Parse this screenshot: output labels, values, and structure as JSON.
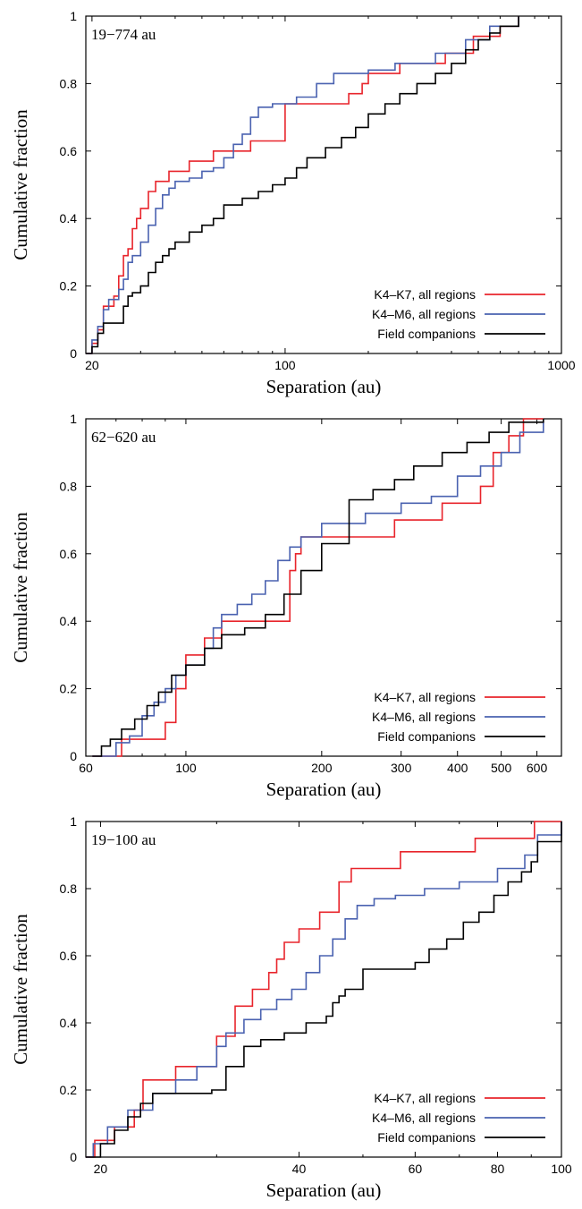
{
  "legend": [
    "K4–K7, all regions",
    "K4–M6, all regions",
    "Field companions"
  ],
  "colors": {
    "k4k7": "#e8242b",
    "k4m6": "#4a62b0",
    "field": "#000000"
  },
  "chart_data": [
    {
      "type": "line",
      "step": true,
      "xscale": "log",
      "xlim": [
        19,
        1000
      ],
      "ylim": [
        0,
        1
      ],
      "annotation": "19−774 au",
      "xlabel": "Separation (au)",
      "ylabel": "Cumulative fraction",
      "xticks": [
        20,
        100,
        1000
      ],
      "yticks": [
        0,
        0.2,
        0.4,
        0.6,
        0.8,
        1
      ],
      "legend_position": "bottom-right",
      "series": [
        {
          "name": "K4–K7, all regions",
          "color": "#e8242b",
          "x": [
            19,
            20,
            21,
            22,
            24,
            25,
            26,
            27,
            28,
            29,
            30,
            32,
            34,
            38,
            45,
            55,
            75,
            100,
            140,
            170,
            190,
            200,
            260,
            380,
            480,
            600,
            700
          ],
          "y": [
            0,
            0.03,
            0.07,
            0.14,
            0.17,
            0.23,
            0.29,
            0.31,
            0.37,
            0.4,
            0.43,
            0.48,
            0.51,
            0.54,
            0.57,
            0.6,
            0.63,
            0.74,
            0.74,
            0.77,
            0.8,
            0.83,
            0.86,
            0.89,
            0.94,
            0.97,
            1.0
          ]
        },
        {
          "name": "K4–M6, all regions",
          "color": "#4a62b0",
          "x": [
            19,
            20,
            21,
            22,
            23,
            25,
            26,
            27,
            28,
            30,
            32,
            34,
            36,
            38,
            40,
            45,
            50,
            55,
            60,
            65,
            70,
            75,
            80,
            90,
            100,
            110,
            130,
            150,
            200,
            250,
            350,
            450,
            550,
            700
          ],
          "y": [
            0,
            0.04,
            0.08,
            0.13,
            0.16,
            0.19,
            0.22,
            0.27,
            0.29,
            0.33,
            0.38,
            0.43,
            0.47,
            0.49,
            0.51,
            0.52,
            0.54,
            0.55,
            0.58,
            0.62,
            0.65,
            0.7,
            0.73,
            0.74,
            0.74,
            0.76,
            0.8,
            0.83,
            0.84,
            0.86,
            0.89,
            0.93,
            0.97,
            1.0
          ]
        },
        {
          "name": "Field companions",
          "color": "#000000",
          "x": [
            19,
            20,
            21,
            22,
            26,
            27,
            28,
            30,
            32,
            34,
            36,
            38,
            40,
            45,
            50,
            55,
            60,
            70,
            80,
            90,
            100,
            110,
            120,
            140,
            160,
            180,
            200,
            230,
            260,
            300,
            350,
            400,
            450,
            500,
            550,
            600,
            700
          ],
          "y": [
            0,
            0.02,
            0.06,
            0.09,
            0.14,
            0.17,
            0.18,
            0.2,
            0.24,
            0.27,
            0.29,
            0.31,
            0.33,
            0.36,
            0.38,
            0.4,
            0.44,
            0.46,
            0.48,
            0.5,
            0.52,
            0.55,
            0.58,
            0.61,
            0.64,
            0.67,
            0.71,
            0.74,
            0.77,
            0.8,
            0.83,
            0.86,
            0.9,
            0.93,
            0.95,
            0.97,
            1.0
          ]
        }
      ]
    },
    {
      "type": "line",
      "step": true,
      "xscale": "log",
      "xlim": [
        60,
        680
      ],
      "ylim": [
        0,
        1
      ],
      "annotation": "62−620 au",
      "xlabel": "Separation (au)",
      "ylabel": "Cumulative fraction",
      "xticks": [
        60,
        100,
        200,
        300,
        400,
        500,
        600
      ],
      "yticks": [
        0,
        0.2,
        0.4,
        0.6,
        0.8,
        1
      ],
      "legend_position": "bottom-right",
      "series": [
        {
          "name": "K4–K7, all regions",
          "color": "#e8242b",
          "x": [
            62,
            72,
            90,
            95,
            100,
            110,
            120,
            170,
            175,
            180,
            190,
            200,
            215,
            290,
            370,
            450,
            480,
            520,
            560,
            600,
            620
          ],
          "y": [
            0,
            0.05,
            0.1,
            0.2,
            0.3,
            0.35,
            0.4,
            0.55,
            0.6,
            0.65,
            0.65,
            0.65,
            0.65,
            0.7,
            0.75,
            0.8,
            0.9,
            0.95,
            1.0,
            1.0,
            1.0
          ]
        },
        {
          "name": "K4–M6, all regions",
          "color": "#4a62b0",
          "x": [
            62,
            70,
            75,
            80,
            85,
            90,
            95,
            100,
            110,
            115,
            120,
            130,
            140,
            150,
            160,
            170,
            180,
            200,
            250,
            300,
            350,
            400,
            450,
            500,
            550,
            620
          ],
          "y": [
            0,
            0.04,
            0.06,
            0.12,
            0.16,
            0.2,
            0.24,
            0.27,
            0.32,
            0.38,
            0.42,
            0.45,
            0.48,
            0.52,
            0.58,
            0.62,
            0.65,
            0.69,
            0.72,
            0.75,
            0.77,
            0.83,
            0.86,
            0.9,
            0.96,
            1.0
          ]
        },
        {
          "name": "Field companions",
          "color": "#000000",
          "x": [
            62,
            65,
            68,
            72,
            77,
            82,
            87,
            93,
            100,
            110,
            120,
            135,
            150,
            165,
            180,
            200,
            230,
            260,
            290,
            320,
            370,
            420,
            470,
            520,
            620
          ],
          "y": [
            0,
            0.03,
            0.05,
            0.08,
            0.11,
            0.15,
            0.19,
            0.24,
            0.27,
            0.32,
            0.36,
            0.38,
            0.42,
            0.48,
            0.55,
            0.63,
            0.76,
            0.79,
            0.82,
            0.86,
            0.9,
            0.93,
            0.96,
            0.99,
            1.0
          ]
        }
      ]
    },
    {
      "type": "line",
      "step": true,
      "xscale": "log",
      "xlim": [
        19,
        100
      ],
      "ylim": [
        0,
        1
      ],
      "annotation": "19−100 au",
      "xlabel": "Separation (au)",
      "ylabel": "Cumulative fraction",
      "xticks": [
        20,
        40,
        60,
        80,
        100
      ],
      "yticks": [
        0,
        0.2,
        0.4,
        0.6,
        0.8,
        1
      ],
      "legend_position": "bottom-right",
      "series": [
        {
          "name": "K4–K7, all regions",
          "color": "#e8242b",
          "x": [
            19,
            19.6,
            21,
            22.5,
            23.2,
            26,
            30,
            32,
            34,
            36,
            37,
            38,
            40,
            43,
            46,
            48,
            52,
            57,
            74,
            91,
            100
          ],
          "y": [
            0,
            0.05,
            0.09,
            0.14,
            0.23,
            0.27,
            0.36,
            0.45,
            0.5,
            0.55,
            0.59,
            0.64,
            0.68,
            0.73,
            0.82,
            0.86,
            0.86,
            0.91,
            0.95,
            1.0,
            1.0
          ]
        },
        {
          "name": "K4–M6, all regions",
          "color": "#4a62b0",
          "x": [
            19,
            19.5,
            20.5,
            22,
            24,
            26,
            28,
            30,
            31,
            33,
            35,
            37,
            39,
            41,
            43,
            45,
            47,
            49,
            52,
            56,
            62,
            70,
            80,
            88,
            92,
            100
          ],
          "y": [
            0,
            0.04,
            0.09,
            0.14,
            0.19,
            0.23,
            0.27,
            0.33,
            0.37,
            0.41,
            0.44,
            0.47,
            0.5,
            0.55,
            0.6,
            0.65,
            0.71,
            0.75,
            0.77,
            0.78,
            0.8,
            0.82,
            0.86,
            0.9,
            0.96,
            1.0
          ]
        },
        {
          "name": "Field companions",
          "color": "#000000",
          "x": [
            19,
            20,
            21,
            22,
            23,
            24,
            29.5,
            31,
            33,
            35,
            38,
            41,
            44,
            45,
            46,
            47,
            50,
            55,
            60,
            63,
            67,
            71,
            75,
            79,
            83,
            87,
            90,
            92,
            100
          ],
          "y": [
            0,
            0.04,
            0.08,
            0.12,
            0.16,
            0.19,
            0.2,
            0.27,
            0.33,
            0.35,
            0.37,
            0.4,
            0.42,
            0.46,
            0.48,
            0.5,
            0.56,
            0.56,
            0.58,
            0.62,
            0.65,
            0.7,
            0.73,
            0.78,
            0.82,
            0.85,
            0.88,
            0.94,
            1.0
          ]
        }
      ]
    }
  ]
}
